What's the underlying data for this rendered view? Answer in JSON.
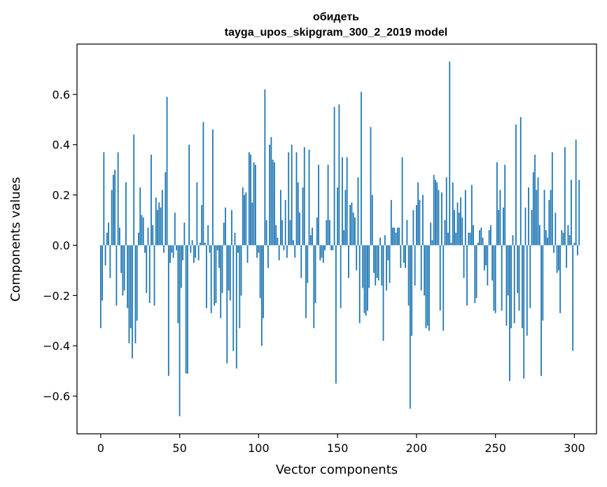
{
  "chart_data": {
    "type": "bar",
    "title": "обидеть",
    "subtitle": "tayga_upos_skipgram_300_2_2019 model",
    "xlabel": "Vector components",
    "ylabel": "Components values",
    "xlim": [
      -15,
      314
    ],
    "ylim": [
      -0.75,
      0.8
    ],
    "xticks": [
      0,
      50,
      100,
      150,
      200,
      250,
      300
    ],
    "yticks": [
      -0.6,
      -0.4,
      -0.2,
      0.0,
      0.2,
      0.4,
      0.6
    ],
    "xtick_labels": [
      "0",
      "50",
      "100",
      "150",
      "200",
      "250",
      "300"
    ],
    "ytick_labels": [
      "−0.6",
      "−0.4",
      "−0.2",
      "0.0",
      "0.2",
      "0.4",
      "0.6"
    ],
    "grid": false,
    "color": "#1f77b4",
    "values": [
      -0.33,
      -0.22,
      0.37,
      -0.08,
      0.05,
      0.09,
      -0.13,
      0.22,
      0.28,
      0.3,
      -0.24,
      0.37,
      0.07,
      -0.11,
      -0.2,
      -0.18,
      0.25,
      -0.25,
      -0.39,
      -0.33,
      -0.45,
      0.44,
      -0.39,
      -0.3,
      0.05,
      0.23,
      0.12,
      0.11,
      -0.03,
      -0.19,
      0.07,
      -0.23,
      0.36,
      0.08,
      -0.24,
      0.19,
      0.14,
      0.17,
      0.15,
      0.22,
      -0.03,
      0.29,
      0.59,
      -0.52,
      -0.07,
      -0.03,
      -0.05,
      0.13,
      -0.02,
      -0.31,
      -0.68,
      -0.17,
      -0.06,
      0.09,
      -0.51,
      -0.51,
      0.4,
      -0.03,
      0.02,
      -0.07,
      -0.05,
      0.25,
      -0.06,
      0.01,
      0.16,
      0.49,
      0.01,
      -0.25,
      0.08,
      -0.03,
      -0.27,
      0.46,
      -0.24,
      -0.23,
      -0.02,
      -0.09,
      -0.29,
      -0.19,
      0.09,
      0.15,
      -0.47,
      -0.18,
      -0.22,
      0.14,
      -0.42,
      0.05,
      -0.49,
      -0.03,
      -0.33,
      -0.2,
      0.23,
      0.2,
      0.21,
      -0.07,
      0.37,
      0.36,
      0.17,
      0.33,
      0.32,
      -0.05,
      -0.03,
      -0.21,
      -0.4,
      -0.29,
      0.62,
      0.1,
      -0.09,
      0.4,
      0.43,
      0.34,
      0.33,
      0.08,
      0.03,
      -0.06,
      0.22,
      0.1,
      -0.02,
      0.18,
      -0.05,
      0.37,
      0.1,
      0.4,
      0.02,
      -0.05,
      0.37,
      0.25,
      0.13,
      -0.13,
      0.23,
      0.39,
      -0.29,
      -0.15,
      0.38,
      0.04,
      0.07,
      -0.33,
      -0.23,
      0.11,
      0.32,
      -0.06,
      -0.05,
      -0.07,
      -0.02,
      0.1,
      0.32,
      0.1,
      -0.02,
      -0.02,
      0.55,
      -0.55,
      0.23,
      0.56,
      -0.25,
      0.35,
      0.06,
      0.22,
      0.35,
      -0.13,
      0.16,
      0.17,
      0.13,
      0.11,
      -0.1,
      0.27,
      -0.31,
      0.61,
      -0.17,
      -0.27,
      -0.28,
      -0.26,
      -0.17,
      0.47,
      0.2,
      -0.11,
      -0.16,
      -0.13,
      -0.14,
      0.03,
      -0.16,
      -0.38,
      0.04,
      -0.18,
      -0.06,
      -0.15,
      0.18,
      0.07,
      0.07,
      0.05,
      0.07,
      0.07,
      -0.09,
      0.35,
      -0.07,
      -0.09,
      0.1,
      -0.24,
      -0.65,
      -0.36,
      0.14,
      -0.16,
      0.16,
      0.25,
      0.18,
      -0.18,
      0.2,
      -0.2,
      -0.33,
      -0.32,
      -0.34,
      0.09,
      0.02,
      0.28,
      0.26,
      0.25,
      0.22,
      -0.26,
      0.21,
      -0.34,
      0.1,
      0.27,
      0.05,
      0.73,
      0.01,
      0.25,
      0.14,
      0.05,
      0.17,
      0.13,
      0.19,
      0.11,
      -0.13,
      0.22,
      -0.24,
      0.05,
      0.05,
      0.24,
      0.08,
      -0.23,
      -0.21,
      0.01,
      0.06,
      0.07,
      0.03,
      -0.1,
      -0.08,
      -0.16,
      0.06,
      0.08,
      -0.14,
      -0.26,
      -0.27,
      0.33,
      0.14,
      0.22,
      -0.26,
      0.15,
      0.32,
      -0.32,
      -0.2,
      -0.54,
      -0.33,
      0.04,
      -0.31,
      0.48,
      -0.19,
      -0.26,
      0.51,
      -0.33,
      -0.53,
      0.15,
      -0.36,
      0.23,
      -0.25,
      0.14,
      0.29,
      0.36,
      0.22,
      0.27,
      0.08,
      -0.52,
      -0.3,
      0.22,
      0.06,
      0.03,
      0.18,
      0.22,
      0.37,
      -0.03,
      0.13,
      -0.11,
      -0.1,
      -0.27,
      0.06,
      0.05,
      0.39,
      -0.09,
      0.08,
      0.04,
      0.26,
      -0.42,
      0.01,
      0.42,
      -0.04,
      0.26
    ]
  }
}
